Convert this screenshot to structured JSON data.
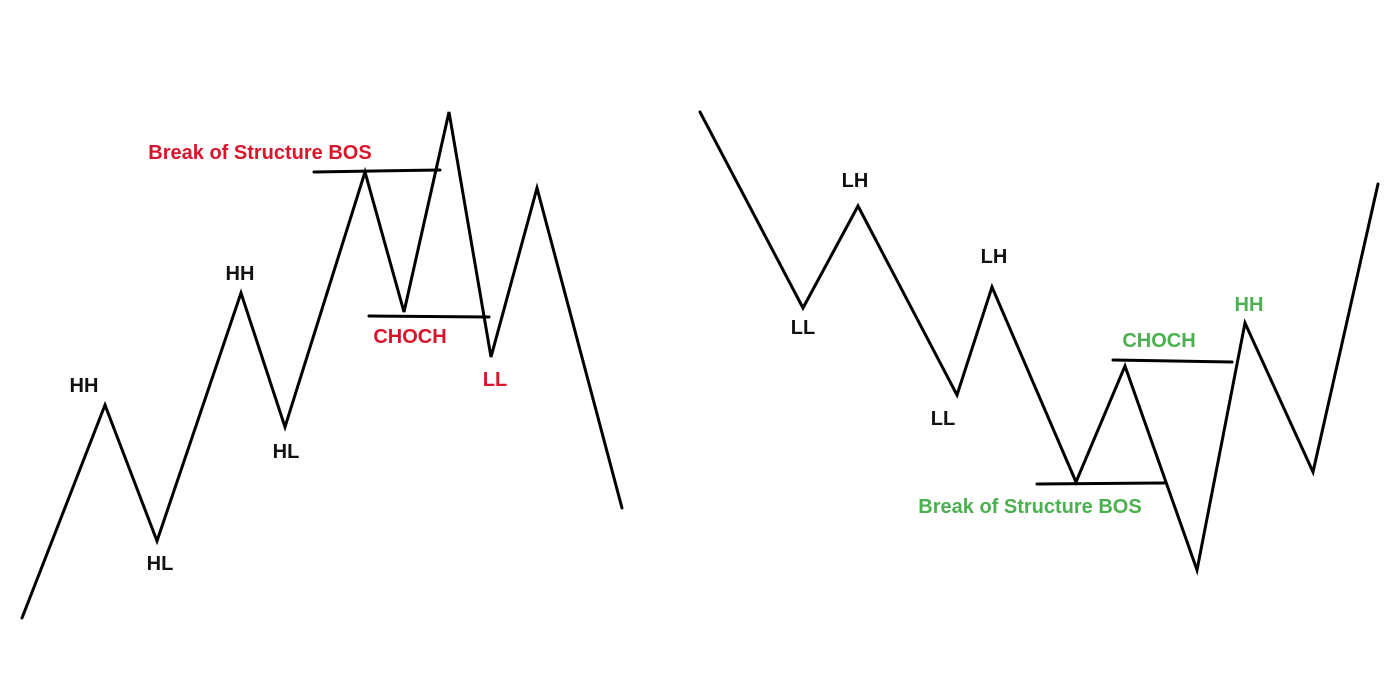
{
  "colors": {
    "line": "#000000",
    "label_default": "#111111",
    "bearish_accent": "#d8152b",
    "bullish_accent": "#4caf50"
  },
  "left_diagram": {
    "labels": {
      "hh_1": "HH",
      "hl_1": "HL",
      "hh_2": "HH",
      "hl_2": "HL",
      "bos": "Break of Structure BOS",
      "choch": "CHOCH",
      "ll": "LL"
    }
  },
  "right_diagram": {
    "labels": {
      "ll_1": "LL",
      "lh_1": "LH",
      "ll_2": "LL",
      "lh_2": "LH",
      "choch": "CHOCH",
      "hh": "HH",
      "bos": "Break of Structure BOS"
    }
  }
}
